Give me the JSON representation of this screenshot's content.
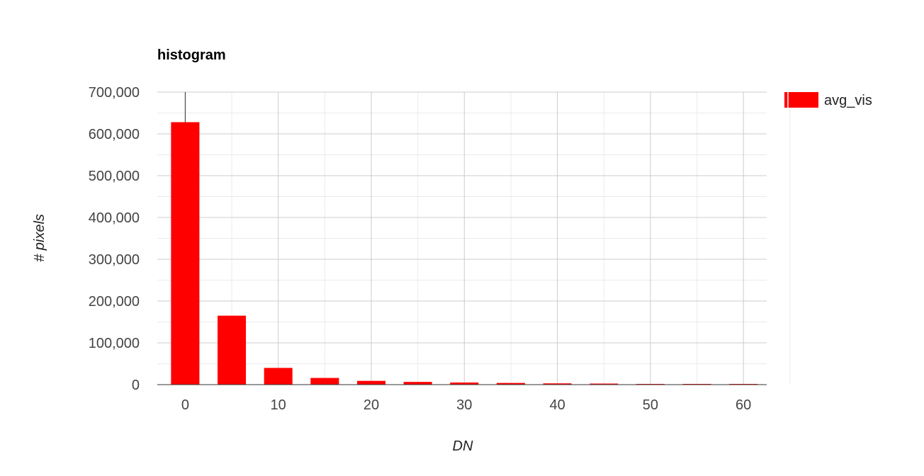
{
  "chart_data": {
    "type": "bar",
    "title": "histogram",
    "xlabel": "DN",
    "ylabel": "# pixels",
    "x": [
      0,
      5,
      10,
      15,
      20,
      25,
      30,
      35,
      40,
      45,
      50,
      55,
      60
    ],
    "series": [
      {
        "name": "avg_vis",
        "color": "#ff0000",
        "values": [
          628000,
          165000,
          40000,
          16000,
          9000,
          6500,
          5000,
          4000,
          3000,
          2500,
          1500,
          1200,
          1500
        ]
      }
    ],
    "xlim": [
      -3,
      62.5
    ],
    "ylim": [
      0,
      700000
    ],
    "x_ticks": [
      0,
      10,
      20,
      30,
      40,
      50,
      60
    ],
    "x_tick_labels": [
      "0",
      "10",
      "20",
      "30",
      "40",
      "50",
      "60"
    ],
    "y_ticks": [
      0,
      100000,
      200000,
      300000,
      400000,
      500000,
      600000,
      700000
    ],
    "y_tick_labels": [
      "0",
      "100,000",
      "200,000",
      "300,000",
      "400,000",
      "500,000",
      "600,000",
      "700,000"
    ],
    "grid": true,
    "legend_position": "right"
  }
}
